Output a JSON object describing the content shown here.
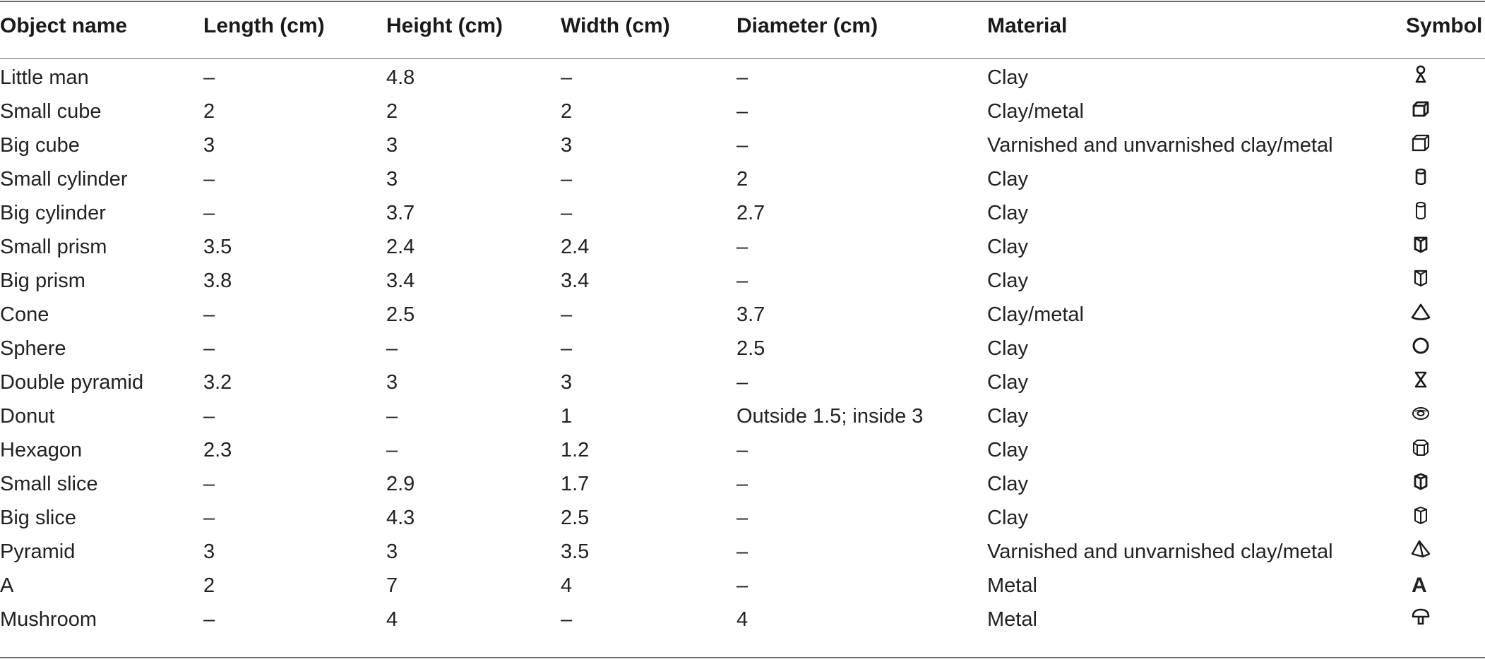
{
  "table": {
    "headers": [
      "Object name",
      "Length (cm)",
      "Height (cm)",
      "Width (cm)",
      "Diameter (cm)",
      "Material",
      "Symbol"
    ],
    "rows": [
      {
        "name": "Little man",
        "length": "–",
        "height": "4.8",
        "width": "–",
        "diameter": "–",
        "material": "Clay",
        "symbol_icon": "little-man-icon"
      },
      {
        "name": "Small cube",
        "length": "2",
        "height": "2",
        "width": "2",
        "diameter": "–",
        "material": "Clay/metal",
        "symbol_icon": "small-cube-icon"
      },
      {
        "name": "Big cube",
        "length": "3",
        "height": "3",
        "width": "3",
        "diameter": "–",
        "material": "Varnished and unvarnished clay/metal",
        "symbol_icon": "big-cube-icon"
      },
      {
        "name": "Small cylinder",
        "length": "–",
        "height": "3",
        "width": "–",
        "diameter": "2",
        "material": "Clay",
        "symbol_icon": "small-cylinder-icon"
      },
      {
        "name": "Big cylinder",
        "length": "–",
        "height": "3.7",
        "width": "–",
        "diameter": "2.7",
        "material": "Clay",
        "symbol_icon": "big-cylinder-icon"
      },
      {
        "name": "Small prism",
        "length": "3.5",
        "height": "2.4",
        "width": "2.4",
        "diameter": "–",
        "material": "Clay",
        "symbol_icon": "small-prism-icon"
      },
      {
        "name": "Big prism",
        "length": "3.8",
        "height": "3.4",
        "width": "3.4",
        "diameter": "–",
        "material": "Clay",
        "symbol_icon": "big-prism-icon"
      },
      {
        "name": "Cone",
        "length": "–",
        "height": "2.5",
        "width": "–",
        "diameter": "3.7",
        "material": "Clay/metal",
        "symbol_icon": "cone-icon"
      },
      {
        "name": "Sphere",
        "length": "–",
        "height": "–",
        "width": "–",
        "diameter": "2.5",
        "material": "Clay",
        "symbol_icon": "sphere-icon"
      },
      {
        "name": "Double pyramid",
        "length": "3.2",
        "height": "3",
        "width": "3",
        "diameter": "–",
        "material": "Clay",
        "symbol_icon": "double-pyramid-icon"
      },
      {
        "name": "Donut",
        "length": "–",
        "height": "–",
        "width": "1",
        "diameter": "Outside 1.5; inside 3",
        "material": "Clay",
        "symbol_icon": "donut-icon"
      },
      {
        "name": "Hexagon",
        "length": "2.3",
        "height": "–",
        "width": "1.2",
        "diameter": "–",
        "material": "Clay",
        "symbol_icon": "hexagon-icon"
      },
      {
        "name": "Small slice",
        "length": "–",
        "height": "2.9",
        "width": "1.7",
        "diameter": "–",
        "material": "Clay",
        "symbol_icon": "small-slice-icon"
      },
      {
        "name": "Big slice",
        "length": "–",
        "height": "4.3",
        "width": "2.5",
        "diameter": "–",
        "material": "Clay",
        "symbol_icon": "big-slice-icon"
      },
      {
        "name": "Pyramid",
        "length": "3",
        "height": "3",
        "width": "3.5",
        "diameter": "–",
        "material": "Varnished and unvarnished clay/metal",
        "symbol_icon": "pyramid-icon"
      },
      {
        "name": "A",
        "length": "2",
        "height": "7",
        "width": "4",
        "diameter": "–",
        "material": "Metal",
        "symbol_icon": "letter-a-icon",
        "symbol_text": "A"
      },
      {
        "name": "Mushroom",
        "length": "–",
        "height": "4",
        "width": "–",
        "diameter": "4",
        "material": "Metal",
        "symbol_icon": "mushroom-icon"
      }
    ]
  }
}
